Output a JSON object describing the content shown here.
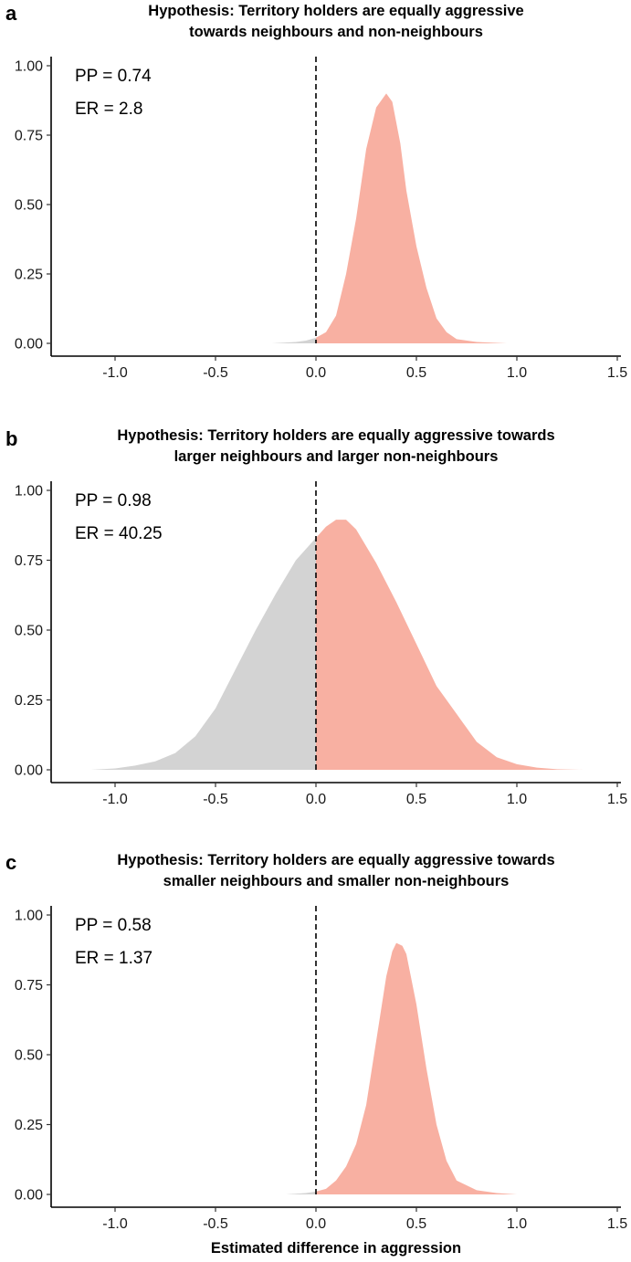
{
  "figure": {
    "xlabel": "Estimated difference in aggression",
    "neg_fill": "#d3d3d3",
    "pos_fill": "#f8b0a2",
    "refline_color": "#000000"
  },
  "chart_data": [
    {
      "type": "area",
      "panel": "a",
      "title_lines": [
        "Hypothesis: Territory holders are equally aggressive",
        "towards neighbours and non-neighbours"
      ],
      "annotations": [
        "PP = 0.74",
        "ER = 2.8"
      ],
      "xlim": [
        -1.32,
        1.52
      ],
      "ylim": [
        0,
        1.0
      ],
      "xticks": [
        -1.0,
        -0.5,
        0.0,
        0.5,
        1.0,
        1.5
      ],
      "xtick_labels": [
        "-1.0",
        "-0.5",
        "0.0",
        "0.5",
        "1.0",
        "1.5"
      ],
      "yticks": [
        0,
        0.25,
        0.5,
        0.75,
        1.0
      ],
      "ytick_labels": [
        "0.00",
        "0.25",
        "0.50",
        "0.75",
        "1.00"
      ],
      "reference_line_x": 0,
      "density": {
        "x": [
          -0.22,
          -0.1,
          -0.05,
          0.0,
          0.05,
          0.1,
          0.15,
          0.2,
          0.25,
          0.3,
          0.35,
          0.38,
          0.42,
          0.45,
          0.5,
          0.55,
          0.6,
          0.65,
          0.7,
          0.8,
          0.95
        ],
        "y": [
          0.0,
          0.005,
          0.01,
          0.02,
          0.04,
          0.1,
          0.25,
          0.45,
          0.7,
          0.85,
          0.9,
          0.87,
          0.72,
          0.55,
          0.35,
          0.2,
          0.09,
          0.04,
          0.015,
          0.005,
          0.0
        ]
      }
    },
    {
      "type": "area",
      "panel": "b",
      "title_lines": [
        "Hypothesis: Territory holders are equally aggressive towards",
        "larger neighbours and larger non-neighbours"
      ],
      "annotations": [
        "PP = 0.98",
        "ER = 40.25"
      ],
      "xlim": [
        -1.32,
        1.52
      ],
      "ylim": [
        0,
        1.0
      ],
      "xticks": [
        -1.0,
        -0.5,
        0.0,
        0.5,
        1.0,
        1.5
      ],
      "xtick_labels": [
        "-1.0",
        "-0.5",
        "0.0",
        "0.5",
        "1.0",
        "1.5"
      ],
      "yticks": [
        0,
        0.25,
        0.5,
        0.75,
        1.0
      ],
      "ytick_labels": [
        "0.00",
        "0.25",
        "0.50",
        "0.75",
        "1.00"
      ],
      "reference_line_x": 0,
      "density": {
        "x": [
          -1.12,
          -1.0,
          -0.9,
          -0.8,
          -0.7,
          -0.6,
          -0.5,
          -0.4,
          -0.3,
          -0.2,
          -0.1,
          0.0,
          0.05,
          0.1,
          0.15,
          0.2,
          0.3,
          0.4,
          0.5,
          0.6,
          0.7,
          0.8,
          0.9,
          1.0,
          1.1,
          1.2,
          1.33
        ],
        "y": [
          0.0,
          0.005,
          0.015,
          0.03,
          0.06,
          0.12,
          0.22,
          0.36,
          0.5,
          0.63,
          0.75,
          0.83,
          0.87,
          0.895,
          0.895,
          0.86,
          0.74,
          0.6,
          0.45,
          0.3,
          0.2,
          0.1,
          0.045,
          0.02,
          0.008,
          0.002,
          0.0
        ]
      }
    },
    {
      "type": "area",
      "panel": "c",
      "title_lines": [
        "Hypothesis: Territory holders are equally aggressive towards",
        "smaller neighbours and smaller non-neighbours"
      ],
      "annotations": [
        "PP = 0.58",
        "ER = 1.37"
      ],
      "xlim": [
        -1.32,
        1.52
      ],
      "ylim": [
        0,
        1.0
      ],
      "xticks": [
        -1.0,
        -0.5,
        0.0,
        0.5,
        1.0,
        1.5
      ],
      "xtick_labels": [
        "-1.0",
        "-0.5",
        "0.0",
        "0.5",
        "1.0",
        "1.5"
      ],
      "yticks": [
        0,
        0.25,
        0.5,
        0.75,
        1.0
      ],
      "ytick_labels": [
        "0.00",
        "0.25",
        "0.50",
        "0.75",
        "1.00"
      ],
      "reference_line_x": 0,
      "density": {
        "x": [
          -0.15,
          -0.05,
          0.0,
          0.05,
          0.1,
          0.15,
          0.2,
          0.25,
          0.3,
          0.35,
          0.38,
          0.4,
          0.43,
          0.45,
          0.5,
          0.55,
          0.6,
          0.65,
          0.7,
          0.8,
          0.9,
          1.0
        ],
        "y": [
          0.0,
          0.005,
          0.01,
          0.02,
          0.05,
          0.1,
          0.18,
          0.32,
          0.55,
          0.78,
          0.87,
          0.9,
          0.89,
          0.86,
          0.68,
          0.45,
          0.25,
          0.12,
          0.05,
          0.015,
          0.005,
          0.0
        ]
      }
    }
  ]
}
